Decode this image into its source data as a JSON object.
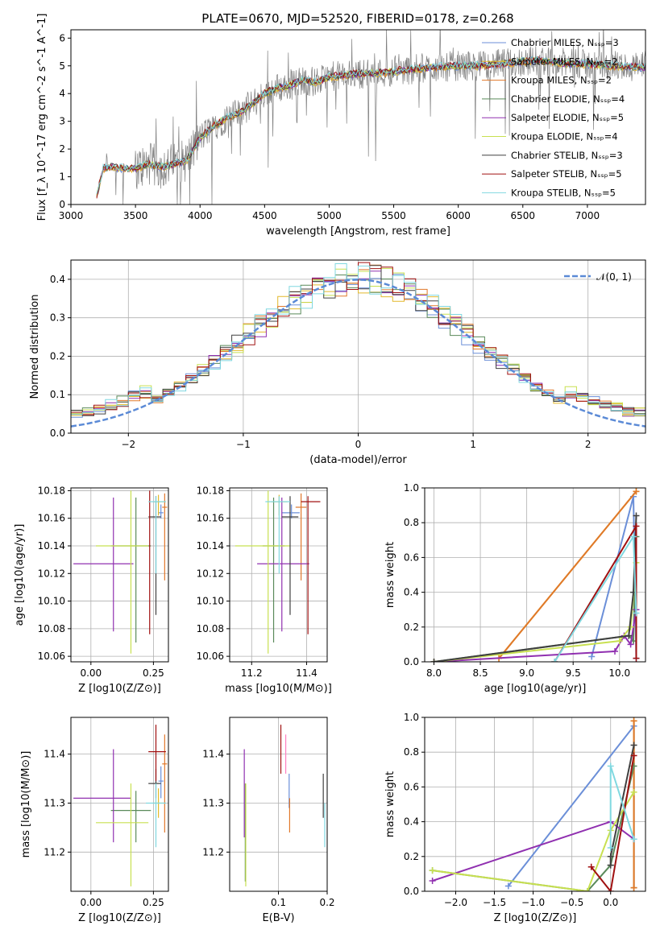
{
  "figure": {
    "title": "PLATE=0670, MJD=52520, FIBERID=0178, z=0.268"
  },
  "colors": {
    "models": [
      "#6b8fd8",
      "#e3b92c",
      "#e0782a",
      "#5a8a5a",
      "#9030b0",
      "#c8e050",
      "#404040",
      "#a01010",
      "#80d8e0"
    ],
    "data": "#808080",
    "gauss": "#5b8ad6",
    "grid": "#b0b0b0"
  },
  "chart_data": [
    {
      "id": "spectrum",
      "type": "line",
      "xlabel": "wavelength [Angstrom, rest frame]",
      "ylabel": "Flux [f_λ 10^-17 erg cm^-2 s^-1 A^-1]",
      "xlim": [
        3000,
        7450
      ],
      "ylim": [
        0,
        6.3
      ],
      "xticks": [
        3000,
        3500,
        4000,
        4500,
        5000,
        5500,
        6000,
        6500,
        7000
      ],
      "yticks": [
        0,
        1,
        2,
        3,
        4,
        5,
        6
      ],
      "grid": false,
      "legend_position": "top-right",
      "series": [
        {
          "name": "Chabrier MILES, N_SSP=3",
          "color": "#6b8fd8"
        },
        {
          "name": "Salpeter MILES, N_SSP=2",
          "color": "#e3b92c"
        },
        {
          "name": "Kroupa MILES, N_SSP=2",
          "color": "#e0782a"
        },
        {
          "name": "Chabrier ELODIE, N_SSP=4",
          "color": "#5a8a5a"
        },
        {
          "name": "Salpeter ELODIE, N_SSP=5",
          "color": "#9030b0"
        },
        {
          "name": "Kroupa ELODIE, N_SSP=4",
          "color": "#c8e050"
        },
        {
          "name": "Chabrier STELIB, N_SSP=3",
          "color": "#404040"
        },
        {
          "name": "Salpeter STELIB, N_SSP=5",
          "color": "#a01010"
        },
        {
          "name": "Kroupa STELIB, N_SSP=5",
          "color": "#80d8e0"
        }
      ],
      "continuum": {
        "x": [
          3200,
          3250,
          3300,
          3400,
          3500,
          3600,
          3700,
          3800,
          3900,
          4000,
          4100,
          4200,
          4300,
          4400,
          4500,
          4600,
          4700,
          4800,
          4900,
          5000,
          5200,
          5400,
          5600,
          5800,
          6000,
          6200,
          6400,
          6600,
          6800,
          7000,
          7200,
          7400
        ],
        "y": [
          0.3,
          1.3,
          1.35,
          1.3,
          1.3,
          1.45,
          1.35,
          1.45,
          1.6,
          2.4,
          2.8,
          3.1,
          3.3,
          3.6,
          4.0,
          4.2,
          4.3,
          4.5,
          4.4,
          4.6,
          4.7,
          4.75,
          4.85,
          4.95,
          5.0,
          5.0,
          5.1,
          5.2,
          5.1,
          5.05,
          5.0,
          4.95
        ]
      }
    },
    {
      "id": "residuals",
      "type": "line",
      "xlabel": "(data-model)/error",
      "ylabel": "Normed distribution",
      "xlim": [
        -2.5,
        2.5
      ],
      "ylim": [
        0,
        0.45
      ],
      "xticks": [
        -2,
        -1,
        0,
        1,
        2
      ],
      "yticks": [
        0.0,
        0.1,
        0.2,
        0.3,
        0.4
      ],
      "grid": true,
      "legend_position": "top-right",
      "legend": "𝒩(0, 1)",
      "bin_width": 0.1
    },
    {
      "id": "age-vs-Z",
      "type": "scatter",
      "xlabel": "Z [log10(Z/Z⊙)]",
      "ylabel": "age [log10(age/yr)]",
      "xlim": [
        -0.08,
        0.31
      ],
      "ylim": [
        10.056,
        10.182
      ],
      "xticks": [
        0.0,
        0.25
      ],
      "yticks": [
        10.06,
        10.08,
        10.1,
        10.12,
        10.14,
        10.16,
        10.18
      ],
      "grid": true,
      "points": [
        {
          "x": 0.28,
          "y": 10.164,
          "xerr": [
            0.01,
            0.01
          ],
          "yerr": [
            0.004,
            0.006
          ],
          "color": "#6b8fd8"
        },
        {
          "x": 0.27,
          "y": 10.172,
          "xerr": [
            0.02,
            0.02
          ],
          "yerr": [
            0.01,
            0.005
          ],
          "color": "#e3b92c"
        },
        {
          "x": 0.295,
          "y": 10.168,
          "xerr": [
            0.01,
            0.01
          ],
          "yerr": [
            0.053,
            0.01
          ],
          "color": "#e0782a"
        },
        {
          "x": 0.18,
          "y": 10.14,
          "xerr": [
            0.1,
            0.06
          ],
          "yerr": [
            0.07,
            0.035
          ],
          "color": "#5a8a5a"
        },
        {
          "x": 0.09,
          "y": 10.127,
          "xerr": [
            0.16,
            0.08
          ],
          "yerr": [
            0.049,
            0.048
          ],
          "color": "#9030b0"
        },
        {
          "x": 0.16,
          "y": 10.14,
          "xerr": [
            0.14,
            0.07
          ],
          "yerr": [
            0.078,
            0.04
          ],
          "color": "#c8e050"
        },
        {
          "x": 0.26,
          "y": 10.161,
          "xerr": [
            0.03,
            0.02
          ],
          "yerr": [
            0.071,
            0.015
          ],
          "color": "#404040"
        },
        {
          "x": 0.235,
          "y": 10.18,
          "xerr": [
            0.0,
            0.0
          ],
          "yerr": [
            0.104,
            0.0
          ],
          "color": "#a01010"
        },
        {
          "x": 0.26,
          "y": 10.172,
          "xerr": [
            0.03,
            0.04
          ],
          "yerr": [
            0.052,
            0.004
          ],
          "color": "#80d8e0"
        }
      ]
    },
    {
      "id": "age-vs-mass",
      "type": "scatter",
      "xlabel": "mass [log10(M/M⊙)]",
      "ylabel": "",
      "xlim": [
        11.12,
        11.475
      ],
      "ylim": [
        10.056,
        10.182
      ],
      "xticks": [
        11.2,
        11.4
      ],
      "yticks": [
        10.06,
        10.08,
        10.1,
        10.12,
        10.14,
        10.16,
        10.18
      ],
      "grid": true,
      "points": [
        {
          "x": 11.345,
          "y": 10.164,
          "xerr": [
            0.035,
            0.03
          ],
          "yerr": [
            0.004,
            0.006
          ],
          "color": "#6b8fd8"
        },
        {
          "x": 11.3,
          "y": 10.172,
          "xerr": [
            0.03,
            0.03
          ],
          "yerr": [
            0.01,
            0.005
          ],
          "color": "#e3b92c"
        },
        {
          "x": 11.38,
          "y": 10.168,
          "xerr": [
            0.02,
            0.02
          ],
          "yerr": [
            0.053,
            0.01
          ],
          "color": "#e0782a"
        },
        {
          "x": 11.28,
          "y": 10.14,
          "xerr": [
            0.04,
            0.04
          ],
          "yerr": [
            0.07,
            0.035
          ],
          "color": "#5a8a5a"
        },
        {
          "x": 11.31,
          "y": 10.127,
          "xerr": [
            0.09,
            0.1
          ],
          "yerr": [
            0.049,
            0.048
          ],
          "color": "#9030b0"
        },
        {
          "x": 11.26,
          "y": 10.14,
          "xerr": [
            0.12,
            0.08
          ],
          "yerr": [
            0.078,
            0.04
          ],
          "color": "#c8e050"
        },
        {
          "x": 11.34,
          "y": 10.161,
          "xerr": [
            0.03,
            0.03
          ],
          "yerr": [
            0.071,
            0.015
          ],
          "color": "#404040"
        },
        {
          "x": 11.405,
          "y": 10.172,
          "xerr": [
            0.025,
            0.045
          ],
          "yerr": [
            0.096,
            0.004
          ],
          "color": "#a01010"
        },
        {
          "x": 11.3,
          "y": 10.172,
          "xerr": [
            0.05,
            0.04
          ],
          "yerr": [
            0.052,
            0.004
          ],
          "color": "#80d8e0"
        }
      ]
    },
    {
      "id": "mass-weight-vs-age",
      "type": "line",
      "xlabel": "age [log10(age/yr)]",
      "ylabel": "mass weight",
      "xlim": [
        7.9,
        10.28
      ],
      "ylim": [
        0.0,
        1.0
      ],
      "xticks": [
        8.0,
        8.5,
        9.0,
        9.5,
        10.0
      ],
      "yticks": [
        0.0,
        0.2,
        0.4,
        0.6,
        0.8,
        1.0
      ],
      "grid": true,
      "series": [
        {
          "color": "#6b8fd8",
          "x": [
            9.7,
            10.15,
            10.18
          ],
          "y": [
            0.03,
            0.95,
            0.02
          ]
        },
        {
          "color": "#e3b92c",
          "x": [
            8.7,
            10.18
          ],
          "y": [
            0.02,
            0.98
          ]
        },
        {
          "color": "#e0782a",
          "x": [
            8.7,
            10.18
          ],
          "y": [
            0.02,
            0.98
          ]
        },
        {
          "color": "#5a8a5a",
          "x": [
            8.0,
            10.1,
            10.15,
            10.18
          ],
          "y": [
            0.0,
            0.15,
            0.12,
            0.72
          ]
        },
        {
          "color": "#9030b0",
          "x": [
            8.0,
            9.95,
            10.05,
            10.12,
            10.18
          ],
          "y": [
            0.0,
            0.06,
            0.15,
            0.1,
            0.3
          ]
        },
        {
          "color": "#c8e050",
          "x": [
            8.0,
            10.0,
            10.12,
            10.18
          ],
          "y": [
            0.0,
            0.12,
            0.2,
            0.57
          ]
        },
        {
          "color": "#404040",
          "x": [
            8.0,
            10.1,
            10.15,
            10.18
          ],
          "y": [
            0.0,
            0.15,
            0.4,
            0.84
          ]
        },
        {
          "color": "#a01010",
          "x": [
            9.3,
            10.18,
            10.18
          ],
          "y": [
            0.0,
            0.78,
            0.02
          ]
        },
        {
          "color": "#80d8e0",
          "x": [
            9.3,
            10.15,
            10.18
          ],
          "y": [
            0.0,
            0.72,
            0.28
          ]
        }
      ]
    },
    {
      "id": "mass-vs-Z",
      "type": "scatter",
      "xlabel": "Z [log10(Z/Z⊙)]",
      "ylabel": "mass [log10(M/M⊙)]",
      "xlim": [
        -0.08,
        0.31
      ],
      "ylim": [
        11.12,
        11.475
      ],
      "xticks": [
        0.0,
        0.25
      ],
      "yticks": [
        11.2,
        11.3,
        11.4
      ],
      "grid": true,
      "points": [
        {
          "x": 0.28,
          "y": 11.345,
          "xerr": [
            0.01,
            0.01
          ],
          "yerr": [
            0.035,
            0.03
          ],
          "color": "#6b8fd8"
        },
        {
          "x": 0.27,
          "y": 11.3,
          "xerr": [
            0.02,
            0.02
          ],
          "yerr": [
            0.03,
            0.03
          ],
          "color": "#e3b92c"
        },
        {
          "x": 0.295,
          "y": 11.38,
          "xerr": [
            0.01,
            0.01
          ],
          "yerr": [
            0.14,
            0.06
          ],
          "color": "#e0782a"
        },
        {
          "x": 0.18,
          "y": 11.285,
          "xerr": [
            0.1,
            0.06
          ],
          "yerr": [
            0.065,
            0.04
          ],
          "color": "#5a8a5a"
        },
        {
          "x": 0.09,
          "y": 11.31,
          "xerr": [
            0.16,
            0.07
          ],
          "yerr": [
            0.09,
            0.1
          ],
          "color": "#9030b0"
        },
        {
          "x": 0.16,
          "y": 11.26,
          "xerr": [
            0.14,
            0.07
          ],
          "yerr": [
            0.13,
            0.08
          ],
          "color": "#c8e050"
        },
        {
          "x": 0.26,
          "y": 11.34,
          "xerr": [
            0.03,
            0.02
          ],
          "yerr": [
            0.03,
            0.03
          ],
          "color": "#404040"
        },
        {
          "x": 0.26,
          "y": 11.405,
          "xerr": [
            0.03,
            0.04
          ],
          "yerr": [
            0.06,
            0.055
          ],
          "color": "#a01010"
        },
        {
          "x": 0.26,
          "y": 11.3,
          "xerr": [
            0.04,
            0.04
          ],
          "yerr": [
            0.09,
            0.04
          ],
          "color": "#80d8e0"
        }
      ]
    },
    {
      "id": "mass-vs-EBV",
      "type": "scatter",
      "xlabel": "E(B-V)",
      "ylabel": "",
      "xlim": [
        0.0,
        0.2
      ],
      "ylim": [
        11.12,
        11.475
      ],
      "xticks": [
        0.1,
        0.2
      ],
      "yticks": [
        11.2,
        11.3,
        11.4
      ],
      "grid": true,
      "points": [
        {
          "x": 0.122,
          "y": 11.33,
          "yerr": [
            0.04,
            0.03
          ],
          "color": "#6b8fd8"
        },
        {
          "x": 0.115,
          "y": 11.39,
          "yerr": [
            0.03,
            0.05
          ],
          "color": "#ff80c0"
        },
        {
          "x": 0.123,
          "y": 11.28,
          "yerr": [
            0.04,
            0.03
          ],
          "color": "#e0782a"
        },
        {
          "x": 0.032,
          "y": 11.28,
          "yerr": [
            0.14,
            0.06
          ],
          "color": "#5a8a5a"
        },
        {
          "x": 0.03,
          "y": 11.31,
          "yerr": [
            0.08,
            0.1
          ],
          "color": "#9030b0"
        },
        {
          "x": 0.033,
          "y": 11.26,
          "yerr": [
            0.13,
            0.08
          ],
          "color": "#c8e050"
        },
        {
          "x": 0.192,
          "y": 11.32,
          "yerr": [
            0.05,
            0.04
          ],
          "color": "#404040"
        },
        {
          "x": 0.105,
          "y": 11.41,
          "yerr": [
            0.05,
            0.05
          ],
          "color": "#a01010"
        },
        {
          "x": 0.195,
          "y": 11.26,
          "yerr": [
            0.05,
            0.04
          ],
          "color": "#80d8e0"
        }
      ]
    },
    {
      "id": "mass-weight-vs-Z",
      "type": "line",
      "xlabel": "Z [log10(Z/Z⊙)]",
      "ylabel": "mass weight",
      "xlim": [
        -2.4,
        0.45
      ],
      "ylim": [
        0.0,
        1.0
      ],
      "xticks": [
        -2.0,
        -1.5,
        -1.0,
        -0.5,
        0.0
      ],
      "yticks": [
        0.0,
        0.2,
        0.4,
        0.6,
        0.8,
        1.0
      ],
      "grid": true,
      "series": [
        {
          "color": "#6b8fd8",
          "x": [
            -1.32,
            0.3,
            0.3
          ],
          "y": [
            0.03,
            0.95,
            0.02
          ]
        },
        {
          "color": "#e3b92c",
          "x": [
            0.3,
            0.3
          ],
          "y": [
            0.02,
            0.98
          ]
        },
        {
          "color": "#e0782a",
          "x": [
            0.3,
            0.3
          ],
          "y": [
            0.02,
            0.98
          ]
        },
        {
          "color": "#5a8a5a",
          "x": [
            -2.3,
            -0.3,
            0.0,
            0.3
          ],
          "y": [
            0.12,
            0.0,
            0.15,
            0.72
          ]
        },
        {
          "color": "#9030b0",
          "x": [
            -2.3,
            0.0,
            0.3
          ],
          "y": [
            0.06,
            0.4,
            0.3
          ]
        },
        {
          "color": "#c8e050",
          "x": [
            -2.3,
            -0.3,
            0.0,
            0.3
          ],
          "y": [
            0.12,
            0.0,
            0.35,
            0.57
          ]
        },
        {
          "color": "#404040",
          "x": [
            0.0,
            0.0,
            0.3
          ],
          "y": [
            0.15,
            0.2,
            0.84
          ]
        },
        {
          "color": "#a01010",
          "x": [
            -0.25,
            0.0,
            0.3
          ],
          "y": [
            0.14,
            0.0,
            0.78
          ]
        },
        {
          "color": "#80d8e0",
          "x": [
            0.0,
            0.0,
            0.3
          ],
          "y": [
            0.25,
            0.72,
            0.3
          ]
        }
      ]
    }
  ]
}
